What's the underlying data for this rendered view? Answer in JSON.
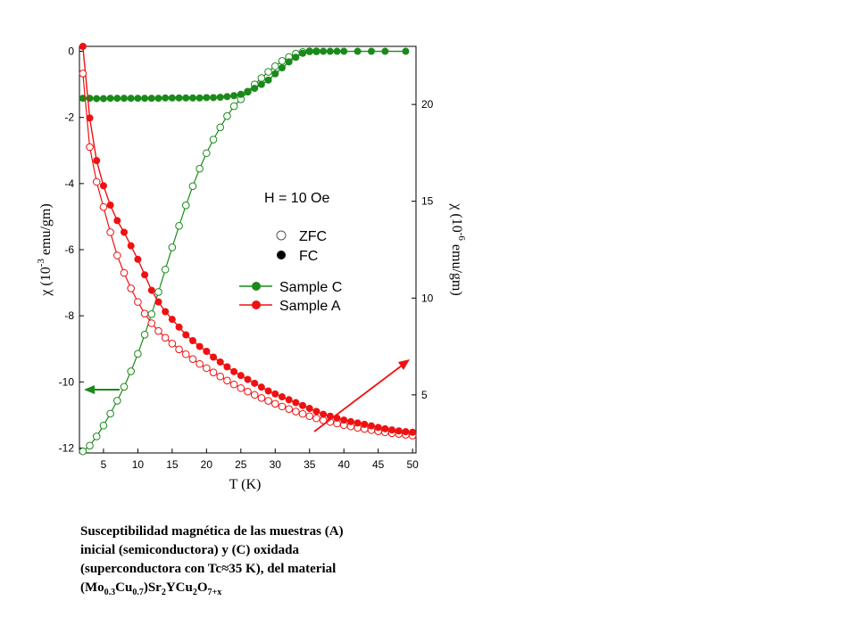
{
  "chart_data": {
    "type": "scatter",
    "x_axis": {
      "label": "T (K)",
      "min": 1.5,
      "max": 50.5,
      "ticks": [
        5,
        10,
        15,
        20,
        25,
        30,
        35,
        40,
        45,
        50
      ]
    },
    "y_left": {
      "label_main": "χ (10",
      "label_exp": "-3",
      "label_unit": " emu/gm)",
      "min": -12.15,
      "max": 0.15,
      "ticks": [
        0,
        -2,
        -4,
        -6,
        -8,
        -10,
        -12
      ]
    },
    "y_right": {
      "label_main": "χ (10",
      "label_exp": "-6",
      "label_unit": " emu/gm)",
      "min": 2,
      "max": 23,
      "ticks": [
        5,
        10,
        15,
        20
      ]
    },
    "annotation": "H = 10 Oe",
    "markers_legend": {
      "open": "ZFC",
      "filled": "FC"
    },
    "series": [
      {
        "name": "Sample C",
        "axis": "left",
        "color": "#1a8a1a",
        "fc": {
          "x": [
            2,
            3,
            4,
            5,
            6,
            7,
            8,
            9,
            10,
            11,
            12,
            13,
            14,
            15,
            16,
            17,
            18,
            19,
            20,
            21,
            22,
            23,
            24,
            25,
            26,
            27,
            28,
            29,
            30,
            31,
            32,
            33,
            34,
            35,
            36,
            37,
            38,
            39,
            40,
            42,
            44,
            46,
            49
          ],
          "y": [
            -1.42,
            -1.42,
            -1.43,
            -1.43,
            -1.42,
            -1.42,
            -1.42,
            -1.42,
            -1.42,
            -1.42,
            -1.42,
            -1.42,
            -1.41,
            -1.41,
            -1.41,
            -1.41,
            -1.41,
            -1.41,
            -1.4,
            -1.4,
            -1.39,
            -1.37,
            -1.34,
            -1.3,
            -1.22,
            -1.12,
            -1.0,
            -0.87,
            -0.68,
            -0.5,
            -0.32,
            -0.18,
            -0.06,
            0.0,
            0.0,
            0.0,
            0.0,
            0.0,
            0.0,
            0.0,
            0.0,
            0.0,
            0.0
          ]
        },
        "zfc": {
          "x": [
            2,
            3,
            4,
            5,
            6,
            7,
            8,
            9,
            10,
            11,
            12,
            13,
            14,
            15,
            16,
            17,
            18,
            19,
            20,
            21,
            22,
            23,
            24,
            25,
            26,
            27,
            28,
            29,
            30,
            31,
            32,
            33,
            34,
            35,
            36
          ],
          "y": [
            -12.1,
            -11.93,
            -11.65,
            -11.32,
            -10.96,
            -10.57,
            -10.15,
            -9.68,
            -9.15,
            -8.57,
            -7.95,
            -7.28,
            -6.6,
            -5.93,
            -5.28,
            -4.66,
            -4.08,
            -3.55,
            -3.08,
            -2.67,
            -2.3,
            -1.96,
            -1.66,
            -1.45,
            -1.22,
            -1.0,
            -0.81,
            -0.62,
            -0.45,
            -0.29,
            -0.17,
            -0.07,
            -0.02,
            0.0,
            0.0
          ]
        }
      },
      {
        "name": "Sample A",
        "axis": "right",
        "color": "#ee1111",
        "fc": {
          "x": [
            2,
            3,
            4,
            5,
            6,
            7,
            8,
            9,
            10,
            11,
            12,
            13,
            14,
            15,
            16,
            17,
            18,
            19,
            20,
            21,
            22,
            23,
            24,
            25,
            26,
            27,
            28,
            29,
            30,
            31,
            32,
            33,
            34,
            35,
            36,
            37,
            38,
            39,
            40,
            41,
            42,
            43,
            44,
            45,
            46,
            47,
            48,
            49,
            50
          ],
          "y": [
            23,
            19.3,
            17.1,
            15.8,
            14.8,
            14.0,
            13.4,
            12.7,
            12.0,
            11.2,
            10.4,
            9.8,
            9.3,
            8.9,
            8.5,
            8.1,
            7.8,
            7.5,
            7.25,
            6.95,
            6.7,
            6.45,
            6.2,
            6.0,
            5.8,
            5.6,
            5.4,
            5.2,
            5.05,
            4.9,
            4.75,
            4.6,
            4.45,
            4.3,
            4.15,
            4.0,
            3.9,
            3.8,
            3.7,
            3.62,
            3.55,
            3.48,
            3.4,
            3.32,
            3.25,
            3.19,
            3.14,
            3.1,
            3.07
          ]
        },
        "zfc": {
          "x": [
            2,
            3,
            4,
            5,
            6,
            7,
            8,
            9,
            10,
            11,
            12,
            13,
            14,
            15,
            16,
            17,
            18,
            19,
            20,
            21,
            22,
            23,
            24,
            25,
            26,
            27,
            28,
            29,
            30,
            31,
            32,
            33,
            34,
            35,
            36,
            37,
            38,
            39,
            40,
            41,
            42,
            43,
            44,
            45,
            46,
            47,
            48,
            49,
            50
          ],
          "y": [
            21.6,
            17.8,
            16.0,
            14.7,
            13.4,
            12.2,
            11.3,
            10.5,
            9.8,
            9.2,
            8.7,
            8.3,
            7.95,
            7.65,
            7.35,
            7.1,
            6.85,
            6.6,
            6.38,
            6.16,
            5.95,
            5.74,
            5.54,
            5.35,
            5.17,
            5.0,
            4.84,
            4.69,
            4.54,
            4.4,
            4.27,
            4.14,
            4.02,
            3.9,
            3.79,
            3.69,
            3.6,
            3.52,
            3.44,
            3.37,
            3.3,
            3.24,
            3.18,
            3.12,
            3.07,
            3.02,
            2.98,
            2.94,
            2.9
          ]
        }
      }
    ]
  },
  "caption": {
    "line1": "Susceptibilidad magnética de las muestras (A)",
    "line2": "inicial (semiconductora)  y (C) oxidada",
    "line3": "(superconductora con   Tc≈35 K), del material",
    "f_open": "(Mo",
    "f_s1": "0.3",
    "f_cu": "Cu",
    "f_s2": "0.7",
    "f_sr": ")Sr",
    "f_s3": "2",
    "f_y": "YCu",
    "f_s4": "2",
    "f_o": "O",
    "f_s5": "7+x"
  }
}
